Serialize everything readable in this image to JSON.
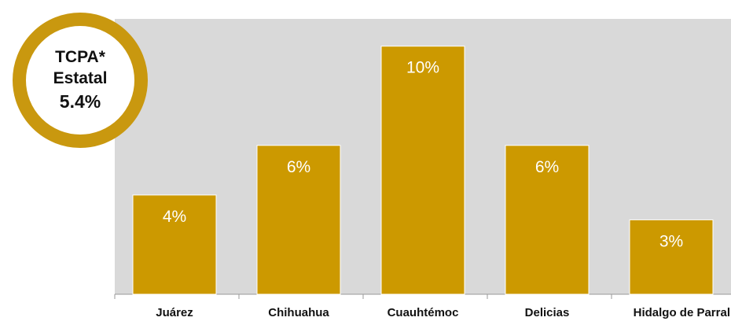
{
  "badge": {
    "line1": "TCPA*",
    "line2": "Estatal",
    "value": "5.4%"
  },
  "colors": {
    "bar": "#cc9900",
    "plot_background": "#d9d9d9",
    "ring": "#c9980f"
  },
  "chart_data": {
    "type": "bar",
    "categories": [
      "Juárez",
      "Chihuahua",
      "Cuauhtémoc",
      "Delicias",
      "Hidalgo de Parral"
    ],
    "values": [
      4,
      6,
      10,
      6,
      3
    ],
    "data_labels": [
      "4%",
      "6%",
      "10%",
      "6%",
      "3%"
    ],
    "ylim": [
      0,
      11.1
    ],
    "grid": false,
    "legend": "none"
  }
}
